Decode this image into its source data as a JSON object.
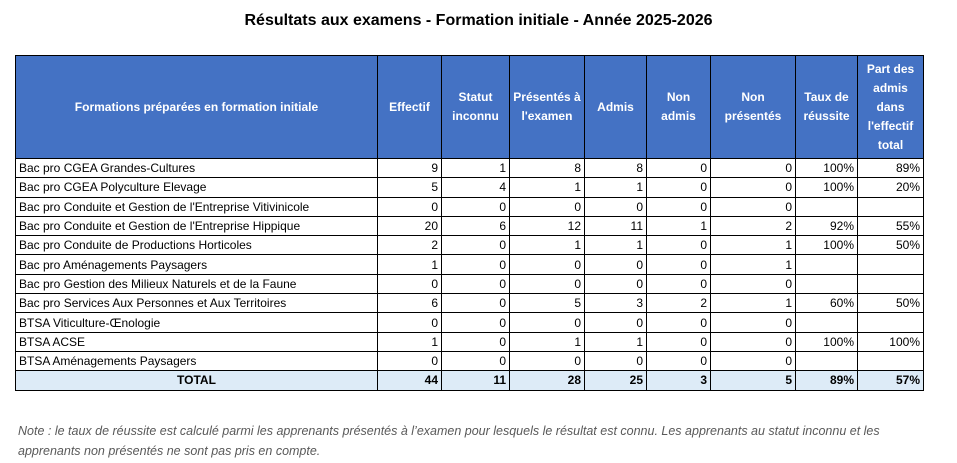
{
  "title": "Résultats aux examens - Formation initiale -  Année 2025-2026",
  "table": {
    "headers": [
      "Formations préparées en formation initiale",
      "Effectif",
      "Statut inconnu",
      "Présentés à l'examen",
      "Admis",
      "Non admis",
      "Non présentés",
      "Taux de réussite",
      "Part des admis dans l'effectif total"
    ],
    "rows": [
      [
        "Bac pro CGEA Grandes-Cultures",
        "9",
        "1",
        "8",
        "8",
        "0",
        "0",
        "100%",
        "89%"
      ],
      [
        "Bac pro CGEA Polyculture Elevage",
        "5",
        "4",
        "1",
        "1",
        "0",
        "0",
        "100%",
        "20%"
      ],
      [
        "Bac pro Conduite et Gestion de l'Entreprise Vitivinicole",
        "0",
        "0",
        "0",
        "0",
        "0",
        "0",
        "",
        ""
      ],
      [
        "Bac pro Conduite et Gestion de l'Entreprise Hippique",
        "20",
        "6",
        "12",
        "11",
        "1",
        "2",
        "92%",
        "55%"
      ],
      [
        "Bac pro Conduite de Productions Horticoles",
        "2",
        "0",
        "1",
        "1",
        "0",
        "1",
        "100%",
        "50%"
      ],
      [
        "Bac pro Aménagements Paysagers",
        "1",
        "0",
        "0",
        "0",
        "0",
        "1",
        "",
        ""
      ],
      [
        "Bac pro Gestion des Milieux Naturels et de la Faune",
        "0",
        "0",
        "0",
        "0",
        "0",
        "0",
        "",
        ""
      ],
      [
        "Bac pro Services Aux Personnes et Aux Territoires",
        "6",
        "0",
        "5",
        "3",
        "2",
        "1",
        "60%",
        "50%"
      ],
      [
        "BTSA Viticulture-Œnologie",
        "0",
        "0",
        "0",
        "0",
        "0",
        "0",
        "",
        ""
      ],
      [
        "BTSA ACSE",
        "1",
        "0",
        "1",
        "1",
        "0",
        "0",
        "100%",
        "100%"
      ],
      [
        "BTSA Aménagements Paysagers",
        "0",
        "0",
        "0",
        "0",
        "0",
        "0",
        "",
        ""
      ]
    ],
    "total": [
      "TOTAL",
      "44",
      "11",
      "28",
      "25",
      "3",
      "5",
      "89%",
      "57%"
    ]
  },
  "note": "Note : le taux de réussite est calculé parmi les apprenants présentés à l’examen pour lesquels le résultat est connu. Les apprenants au statut inconnu et les apprenants non présentés ne sont pas pris en compte.",
  "colors": {
    "header_bg": "#4472C4",
    "total_bg": "#DDEBF7",
    "note_text": "#595959"
  }
}
